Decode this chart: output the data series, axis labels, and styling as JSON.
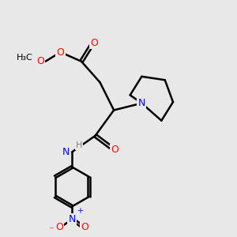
{
  "background_color": "#e8e8e8",
  "bond_color": "#000000",
  "atom_colors": {
    "O": "#ff0000",
    "N": "#0000ff",
    "C": "#000000",
    "H": "#808080"
  },
  "title": "",
  "figsize": [
    3.0,
    3.0
  ],
  "dpi": 100
}
